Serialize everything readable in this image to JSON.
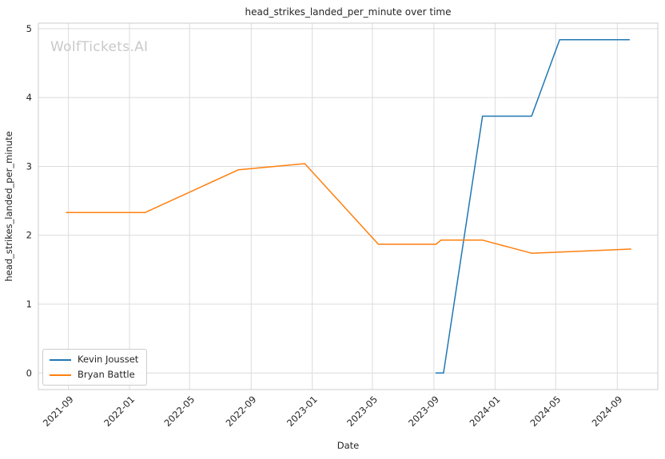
{
  "watermark": "WolfTickets.AI",
  "colors": {
    "grid": "#dcdcdc",
    "spine": "#cccccc",
    "text": "#262626",
    "watermark": "#c9c9c9",
    "series_blue": "#1f77b4",
    "series_orange": "#ff7f0e"
  },
  "chart_data": {
    "type": "line",
    "title": "head_strikes_landed_per_minute over time",
    "xlabel": "Date",
    "ylabel": "head_strikes_landed_per_minute",
    "grid": true,
    "legend_position": "lower left",
    "x_tick_labels": [
      "2021-09",
      "2022-01",
      "2022-05",
      "2022-09",
      "2023-01",
      "2023-05",
      "2023-09",
      "2024-01",
      "2024-05",
      "2024-09"
    ],
    "y_ticks": [
      0,
      1,
      2,
      3,
      4,
      5
    ],
    "xlim": [
      "2021-07-03",
      "2024-11-21"
    ],
    "ylim": [
      -0.24,
      5.08
    ],
    "series": [
      {
        "name": "Kevin Jousset",
        "color": "#1f77b4",
        "points": [
          {
            "x": "2023-09-05",
            "y": 0.0
          },
          {
            "x": "2023-09-20",
            "y": 0.0
          },
          {
            "x": "2023-12-07",
            "y": 3.73
          },
          {
            "x": "2024-03-14",
            "y": 3.73
          },
          {
            "x": "2024-05-09",
            "y": 4.84
          },
          {
            "x": "2024-09-25",
            "y": 4.84
          }
        ]
      },
      {
        "name": "Bryan Battle",
        "color": "#ff7f0e",
        "points": [
          {
            "x": "2021-08-28",
            "y": 2.33
          },
          {
            "x": "2022-02-01",
            "y": 2.33
          },
          {
            "x": "2022-08-06",
            "y": 2.95
          },
          {
            "x": "2022-12-17",
            "y": 3.04
          },
          {
            "x": "2023-05-13",
            "y": 1.87
          },
          {
            "x": "2023-09-05",
            "y": 1.87
          },
          {
            "x": "2023-09-15",
            "y": 1.93
          },
          {
            "x": "2023-12-07",
            "y": 1.93
          },
          {
            "x": "2024-03-14",
            "y": 1.74
          },
          {
            "x": "2024-09-28",
            "y": 1.8
          }
        ]
      }
    ]
  }
}
